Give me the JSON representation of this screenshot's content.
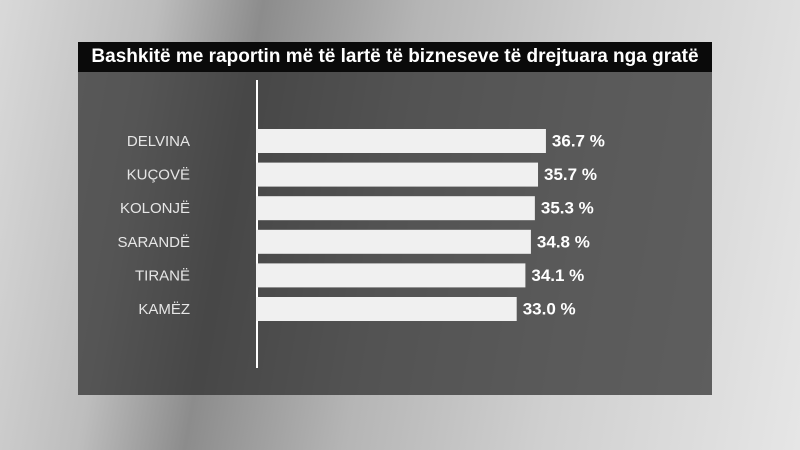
{
  "chart_data": {
    "type": "bar",
    "orientation": "horizontal",
    "title": "Bashkitë me raportin më të lartë të bizneseve të drejtuara nga gratë",
    "categories": [
      "DELVINA",
      "KUÇOVË",
      "KOLONJË",
      "SARANDË",
      "TIRANË",
      "KAMËZ"
    ],
    "values": [
      36.7,
      35.7,
      35.3,
      34.8,
      34.1,
      33.0
    ],
    "value_labels": [
      "36.7 %",
      "35.7 %",
      "35.3 %",
      "34.8 %",
      "34.1 %",
      "33.0 %"
    ],
    "color": "#f0f0f0"
  }
}
